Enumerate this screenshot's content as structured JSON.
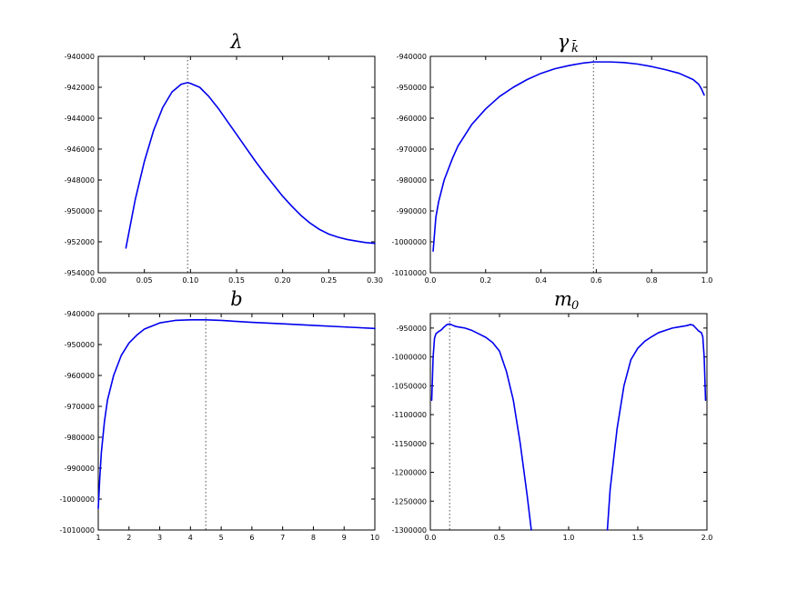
{
  "colors": {
    "curve": "#0000ee",
    "marker": "#777777"
  },
  "chart_data": [
    {
      "type": "line",
      "title": "λ",
      "title_sub": "",
      "xlim": [
        0.0,
        0.3
      ],
      "ylim": [
        -954000,
        -940000
      ],
      "xticks": [
        0.0,
        0.05,
        0.1,
        0.15,
        0.2,
        0.25,
        0.3
      ],
      "xtick_labels": [
        "0.00",
        "0.05",
        "0.10",
        "0.15",
        "0.20",
        "0.25",
        "0.30"
      ],
      "yticks": [
        -954000,
        -952000,
        -950000,
        -948000,
        -946000,
        -944000,
        -942000,
        -940000
      ],
      "ytick_labels": [
        "-954000",
        "-952000",
        "-950000",
        "-948000",
        "-946000",
        "-944000",
        "-942000",
        "-940000"
      ],
      "vline": 0.097,
      "series": [
        {
          "x": [
            0.03,
            0.04,
            0.05,
            0.06,
            0.07,
            0.08,
            0.09,
            0.097,
            0.1,
            0.11,
            0.12,
            0.13,
            0.14,
            0.15,
            0.16,
            0.17,
            0.18,
            0.19,
            0.2,
            0.21,
            0.22,
            0.23,
            0.24,
            0.25,
            0.26,
            0.27,
            0.28,
            0.29,
            0.3
          ],
          "y": [
            -952400,
            -949300,
            -946800,
            -944800,
            -943300,
            -942300,
            -941800,
            -941700,
            -941750,
            -942000,
            -942600,
            -943350,
            -944200,
            -945050,
            -945900,
            -946750,
            -947550,
            -948300,
            -949050,
            -949700,
            -950300,
            -950800,
            -951200,
            -951500,
            -951700,
            -951850,
            -951950,
            -952050,
            -952100
          ]
        }
      ]
    },
    {
      "type": "line",
      "title": "γ",
      "title_sub": "k̄",
      "xlim": [
        0.0,
        1.0
      ],
      "ylim": [
        -1010000,
        -940000
      ],
      "xticks": [
        0.0,
        0.2,
        0.4,
        0.6,
        0.8,
        1.0
      ],
      "xtick_labels": [
        "0.0",
        "0.2",
        "0.4",
        "0.6",
        "0.8",
        "1.0"
      ],
      "yticks": [
        -1010000,
        -1000000,
        -990000,
        -980000,
        -970000,
        -960000,
        -950000,
        -940000
      ],
      "ytick_labels": [
        "-1010000",
        "-1000000",
        "-990000",
        "-980000",
        "-970000",
        "-960000",
        "-950000",
        "-940000"
      ],
      "vline": 0.59,
      "series": [
        {
          "x": [
            0.01,
            0.02,
            0.03,
            0.05,
            0.08,
            0.1,
            0.15,
            0.2,
            0.25,
            0.3,
            0.35,
            0.4,
            0.45,
            0.5,
            0.55,
            0.59,
            0.65,
            0.7,
            0.75,
            0.8,
            0.85,
            0.9,
            0.95,
            0.97,
            0.98,
            0.99
          ],
          "y": [
            -1003000,
            -992000,
            -987000,
            -980000,
            -973000,
            -969000,
            -962000,
            -957000,
            -953000,
            -950000,
            -947500,
            -945500,
            -944000,
            -943000,
            -942200,
            -941800,
            -941800,
            -942000,
            -942500,
            -943300,
            -944300,
            -945500,
            -947500,
            -949000,
            -950500,
            -952500
          ]
        }
      ]
    },
    {
      "type": "line",
      "title": "b",
      "title_sub": "",
      "xlim": [
        1,
        10
      ],
      "ylim": [
        -1010000,
        -940000
      ],
      "xticks": [
        1,
        2,
        3,
        4,
        5,
        6,
        7,
        8,
        9,
        10
      ],
      "xtick_labels": [
        "1",
        "2",
        "3",
        "4",
        "5",
        "6",
        "7",
        "8",
        "9",
        "10"
      ],
      "yticks": [
        -1010000,
        -1000000,
        -990000,
        -980000,
        -970000,
        -960000,
        -950000,
        -940000
      ],
      "ytick_labels": [
        "-1010000",
        "-1000000",
        "-990000",
        "-980000",
        "-970000",
        "-960000",
        "-950000",
        "-940000"
      ],
      "vline": 4.5,
      "series": [
        {
          "x": [
            1.0,
            1.05,
            1.1,
            1.2,
            1.3,
            1.5,
            1.75,
            2.0,
            2.25,
            2.5,
            3.0,
            3.5,
            4.0,
            4.5,
            5.0,
            6.0,
            7.0,
            8.0,
            9.0,
            10.0
          ],
          "y": [
            -1003000,
            -993000,
            -985000,
            -975000,
            -968000,
            -960000,
            -953500,
            -949500,
            -947000,
            -945000,
            -943000,
            -942200,
            -942000,
            -942000,
            -942200,
            -942800,
            -943300,
            -943800,
            -944300,
            -944800
          ]
        }
      ]
    },
    {
      "type": "line",
      "title": "m",
      "title_sub": "0",
      "xlim": [
        0.0,
        2.0
      ],
      "ylim": [
        -1300000,
        -925000
      ],
      "xticks": [
        0.0,
        0.5,
        1.0,
        1.5,
        2.0
      ],
      "xtick_labels": [
        "0.0",
        "0.5",
        "1.0",
        "1.5",
        "2.0"
      ],
      "yticks": [
        -1300000,
        -1250000,
        -1200000,
        -1150000,
        -1100000,
        -1050000,
        -1000000,
        -950000
      ],
      "ytick_labels": [
        "-1300000",
        "-1250000",
        "-1200000",
        "-1150000",
        "-1100000",
        "-1050000",
        "-1000000",
        "-950000"
      ],
      "vline": 0.14,
      "series": [
        {
          "x": [
            0.01,
            0.02,
            0.03,
            0.04,
            0.06,
            0.08,
            0.1,
            0.12,
            0.14,
            0.16,
            0.18,
            0.2,
            0.25,
            0.3,
            0.35,
            0.4,
            0.45,
            0.5,
            0.55,
            0.6,
            0.65,
            0.7,
            0.72,
            0.73
          ],
          "y": [
            -1075000,
            -1000000,
            -968000,
            -960000,
            -956000,
            -953000,
            -948000,
            -944000,
            -943000,
            -945000,
            -947000,
            -948000,
            -950000,
            -954000,
            -960000,
            -966000,
            -975000,
            -990000,
            -1025000,
            -1075000,
            -1150000,
            -1240000,
            -1280000,
            -1300000
          ]
        },
        {
          "x": [
            1.28,
            1.3,
            1.35,
            1.4,
            1.45,
            1.5,
            1.55,
            1.6,
            1.65,
            1.7,
            1.75,
            1.8,
            1.85,
            1.88,
            1.9,
            1.92,
            1.94,
            1.96,
            1.97,
            1.98,
            1.99
          ],
          "y": [
            -1300000,
            -1230000,
            -1125000,
            -1050000,
            -1005000,
            -985000,
            -973000,
            -965000,
            -958000,
            -954000,
            -950000,
            -948000,
            -946000,
            -944000,
            -945000,
            -950000,
            -955000,
            -958000,
            -965000,
            -1000000,
            -1075000
          ]
        }
      ]
    }
  ]
}
